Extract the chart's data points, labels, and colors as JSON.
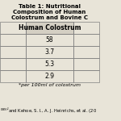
{
  "title": "Table 1: Nutritional Composition of Human Colostrum and Bovine C",
  "col_headers": [
    "",
    "Human Colostrum",
    ""
  ],
  "rows": [
    [
      "",
      "58",
      ""
    ],
    [
      "",
      "3.7",
      ""
    ],
    [
      "",
      "5.3",
      ""
    ],
    [
      "",
      "2.9",
      ""
    ]
  ],
  "footnote": "*per 100ml of colostrum",
  "citation": "*per 100ml of colostrum",
  "bg_color": "#e8e4d8",
  "header_bg": "#d4cfc3",
  "title_fontsize": 5.0,
  "cell_fontsize": 5.5,
  "footnote_fontsize": 4.5
}
